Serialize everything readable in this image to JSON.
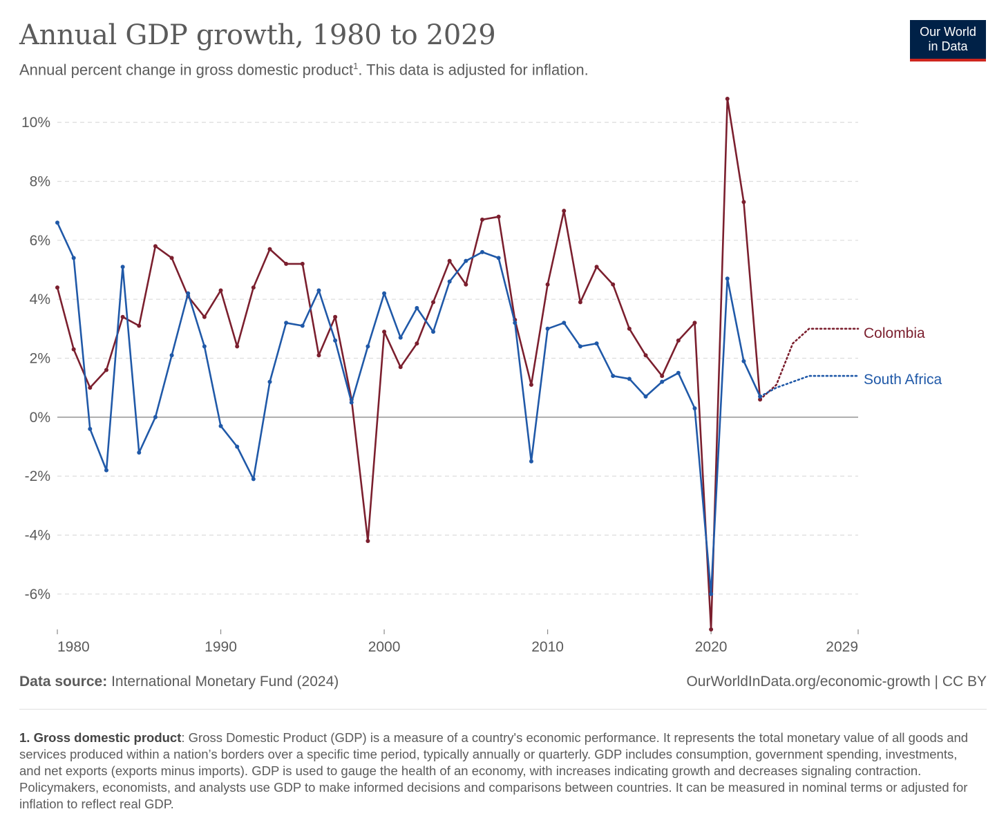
{
  "header": {
    "title": "Annual GDP growth, 1980 to 2029",
    "subtitle_main": "Annual percent change in gross domestic product",
    "subtitle_ref": "1",
    "subtitle_tail": ". This data is adjusted for inflation."
  },
  "logo": {
    "line1": "Our World",
    "line2": "in Data",
    "bg": "#002147",
    "accent": "#ce261e"
  },
  "footer": {
    "source_label": "Data source:",
    "source_text": "International Monetary Fund (2024)",
    "credit": "OurWorldInData.org/economic-growth | CC BY",
    "note_label": "1. Gross domestic product",
    "note_text": ": Gross Domestic Product (GDP) is a measure of a country's economic performance. It represents the total monetary value of all goods and services produced within a nation’s borders over a specific time period, typically annually or quarterly. GDP includes consumption, government spending, investments, and net exports (exports minus imports). GDP is used to gauge the health of an economy, with increases indicating growth and decreases signaling contraction. Policymakers, economists, and analysts use GDP to make informed decisions and comparisons between countries. It can be measured in nominal terms or adjusted for inflation to reflect real GDP."
  },
  "chart_data": {
    "type": "line",
    "xlim": [
      1980,
      2029
    ],
    "ylim": [
      -7.2,
      10.8
    ],
    "y_ticks": [
      -6,
      -4,
      -2,
      0,
      2,
      4,
      6,
      8,
      10
    ],
    "y_tick_labels": [
      "-6%",
      "-4%",
      "-2%",
      "0%",
      "2%",
      "4%",
      "6%",
      "8%",
      "10%"
    ],
    "x_ticks": [
      1980,
      1990,
      2000,
      2010,
      2020,
      2029
    ],
    "x_tick_labels": [
      "1980",
      "1990",
      "2000",
      "2010",
      "2020",
      "2029"
    ],
    "grid": "horizontal dashed",
    "projection_start": 2023,
    "series": [
      {
        "name": "Colombia",
        "color": "#7b1f2e",
        "x": [
          1980,
          1981,
          1982,
          1983,
          1984,
          1985,
          1986,
          1987,
          1988,
          1989,
          1990,
          1991,
          1992,
          1993,
          1994,
          1995,
          1996,
          1997,
          1998,
          1999,
          2000,
          2001,
          2002,
          2003,
          2004,
          2005,
          2006,
          2007,
          2008,
          2009,
          2010,
          2011,
          2012,
          2013,
          2014,
          2015,
          2016,
          2017,
          2018,
          2019,
          2020,
          2021,
          2022,
          2023,
          2024,
          2025,
          2026,
          2027,
          2028,
          2029
        ],
        "values": [
          4.4,
          2.3,
          1.0,
          1.6,
          3.4,
          3.1,
          5.8,
          5.4,
          4.1,
          3.4,
          4.3,
          2.4,
          4.4,
          5.7,
          5.2,
          5.2,
          2.1,
          3.4,
          0.6,
          -4.2,
          2.9,
          1.7,
          2.5,
          3.9,
          5.3,
          4.5,
          6.7,
          6.8,
          3.3,
          1.1,
          4.5,
          7.0,
          3.9,
          5.1,
          4.5,
          3.0,
          2.1,
          1.4,
          2.6,
          3.2,
          -7.2,
          10.8,
          7.3,
          0.6,
          1.1,
          2.5,
          3.0,
          3.0,
          3.0,
          3.0
        ]
      },
      {
        "name": "South Africa",
        "color": "#2059a8",
        "x": [
          1980,
          1981,
          1982,
          1983,
          1984,
          1985,
          1986,
          1987,
          1988,
          1989,
          1990,
          1991,
          1992,
          1993,
          1994,
          1995,
          1996,
          1997,
          1998,
          1999,
          2000,
          2001,
          2002,
          2003,
          2004,
          2005,
          2006,
          2007,
          2008,
          2009,
          2010,
          2011,
          2012,
          2013,
          2014,
          2015,
          2016,
          2017,
          2018,
          2019,
          2020,
          2021,
          2022,
          2023,
          2024,
          2025,
          2026,
          2027,
          2028,
          2029
        ],
        "values": [
          6.6,
          5.4,
          -0.4,
          -1.8,
          5.1,
          -1.2,
          0.0,
          2.1,
          4.2,
          2.4,
          -0.3,
          -1.0,
          -2.1,
          1.2,
          3.2,
          3.1,
          4.3,
          2.6,
          0.5,
          2.4,
          4.2,
          2.7,
          3.7,
          2.9,
          4.6,
          5.3,
          5.6,
          5.4,
          3.2,
          -1.5,
          3.0,
          3.2,
          2.4,
          2.5,
          1.4,
          1.3,
          0.7,
          1.2,
          1.5,
          0.3,
          -6.0,
          4.7,
          1.9,
          0.7,
          1.0,
          1.2,
          1.4,
          1.4,
          1.4,
          1.4
        ]
      }
    ]
  }
}
